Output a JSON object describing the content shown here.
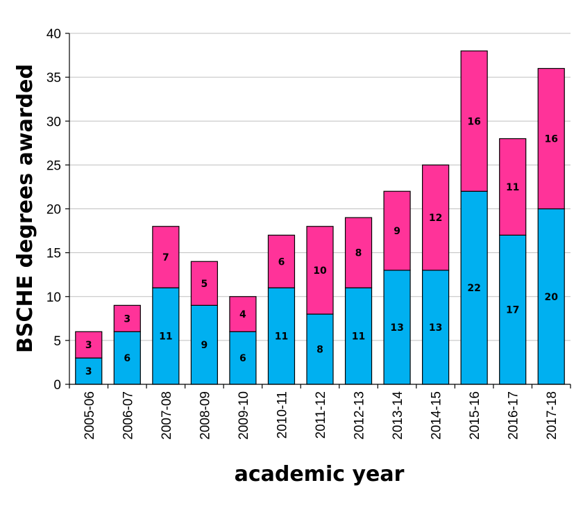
{
  "chart_data": {
    "type": "bar",
    "stacked": true,
    "title": "",
    "xlabel": "academic year",
    "ylabel": "BSCHE degrees awarded",
    "ylim": [
      0,
      40
    ],
    "ytick_step": 5,
    "yticks": [
      "0",
      "5",
      "10",
      "15",
      "20",
      "25",
      "30",
      "35",
      "40"
    ],
    "grid": true,
    "categories": [
      "2005-06",
      "2006-07",
      "2007-08",
      "2008-09",
      "2009-10",
      "2010-11",
      "2011-12",
      "2012-13",
      "2013-14",
      "2014-15",
      "2015-16",
      "2016-17",
      "2017-18"
    ],
    "series": [
      {
        "name": "lower segment",
        "color": "#00B0F0",
        "values": [
          3,
          6,
          11,
          9,
          6,
          11,
          8,
          11,
          13,
          13,
          22,
          17,
          20
        ]
      },
      {
        "name": "upper segment",
        "color": "#FF3399",
        "values": [
          3,
          3,
          7,
          5,
          4,
          6,
          10,
          8,
          9,
          12,
          16,
          11,
          16
        ]
      }
    ]
  }
}
